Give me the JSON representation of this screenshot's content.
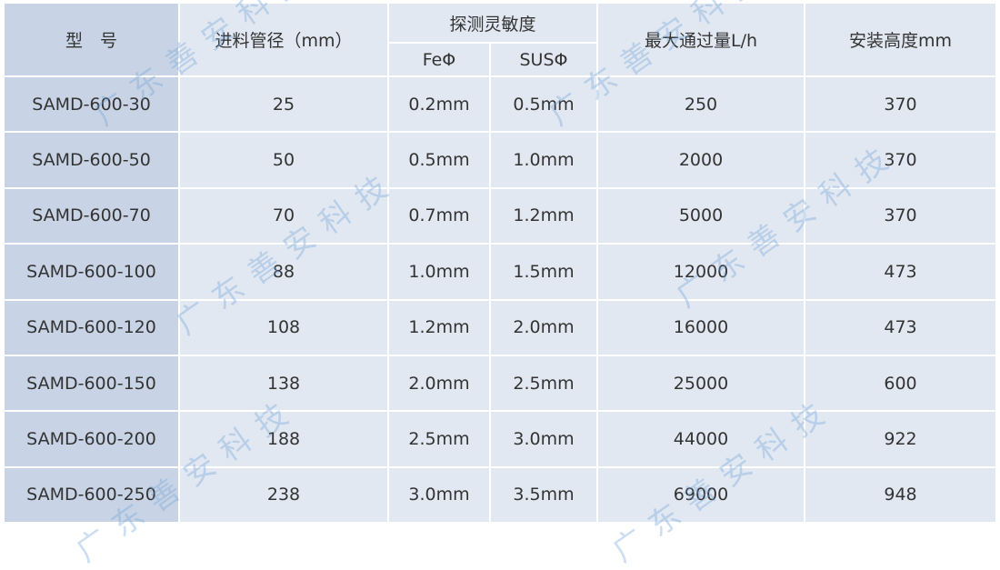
{
  "header": {
    "model": "型　号",
    "pipe_diameter": "进料管径（mm）",
    "sensitivity": "探测灵敏度",
    "fe": "FeΦ",
    "sus": "SUSΦ",
    "max_flow": "最大通过量L/h",
    "install_height": "安装高度mm"
  },
  "rows": [
    {
      "model": "SAMD-600-30",
      "pipe": "25",
      "fe": "0.2mm",
      "sus": "0.5mm",
      "flow": "250",
      "height": "370"
    },
    {
      "model": "SAMD-600-50",
      "pipe": "50",
      "fe": "0.5mm",
      "sus": "1.0mm",
      "flow": "2000",
      "height": "370"
    },
    {
      "model": "SAMD-600-70",
      "pipe": "70",
      "fe": "0.7mm",
      "sus": "1.2mm",
      "flow": "5000",
      "height": "370"
    },
    {
      "model": "SAMD-600-100",
      "pipe": "88",
      "fe": "1.0mm",
      "sus": "1.5mm",
      "flow": "12000",
      "height": "473"
    },
    {
      "model": "SAMD-600-120",
      "pipe": "108",
      "fe": "1.2mm",
      "sus": "2.0mm",
      "flow": "16000",
      "height": "473"
    },
    {
      "model": "SAMD-600-150",
      "pipe": "138",
      "fe": "2.0mm",
      "sus": "2.5mm",
      "flow": "25000",
      "height": "600"
    },
    {
      "model": "SAMD-600-200",
      "pipe": "188",
      "fe": "2.5mm",
      "sus": "3.0mm",
      "flow": "44000",
      "height": "922"
    },
    {
      "model": "SAMD-600-250",
      "pipe": "238",
      "fe": "3.0mm",
      "sus": "3.5mm",
      "flow": "69000",
      "height": "948"
    }
  ],
  "watermark": "广东善安科技",
  "colors": {
    "model_column": "#c8d4e5",
    "cells": "#e2e8f2",
    "border": "#ffffff",
    "watermark": "#6ea0d7"
  }
}
